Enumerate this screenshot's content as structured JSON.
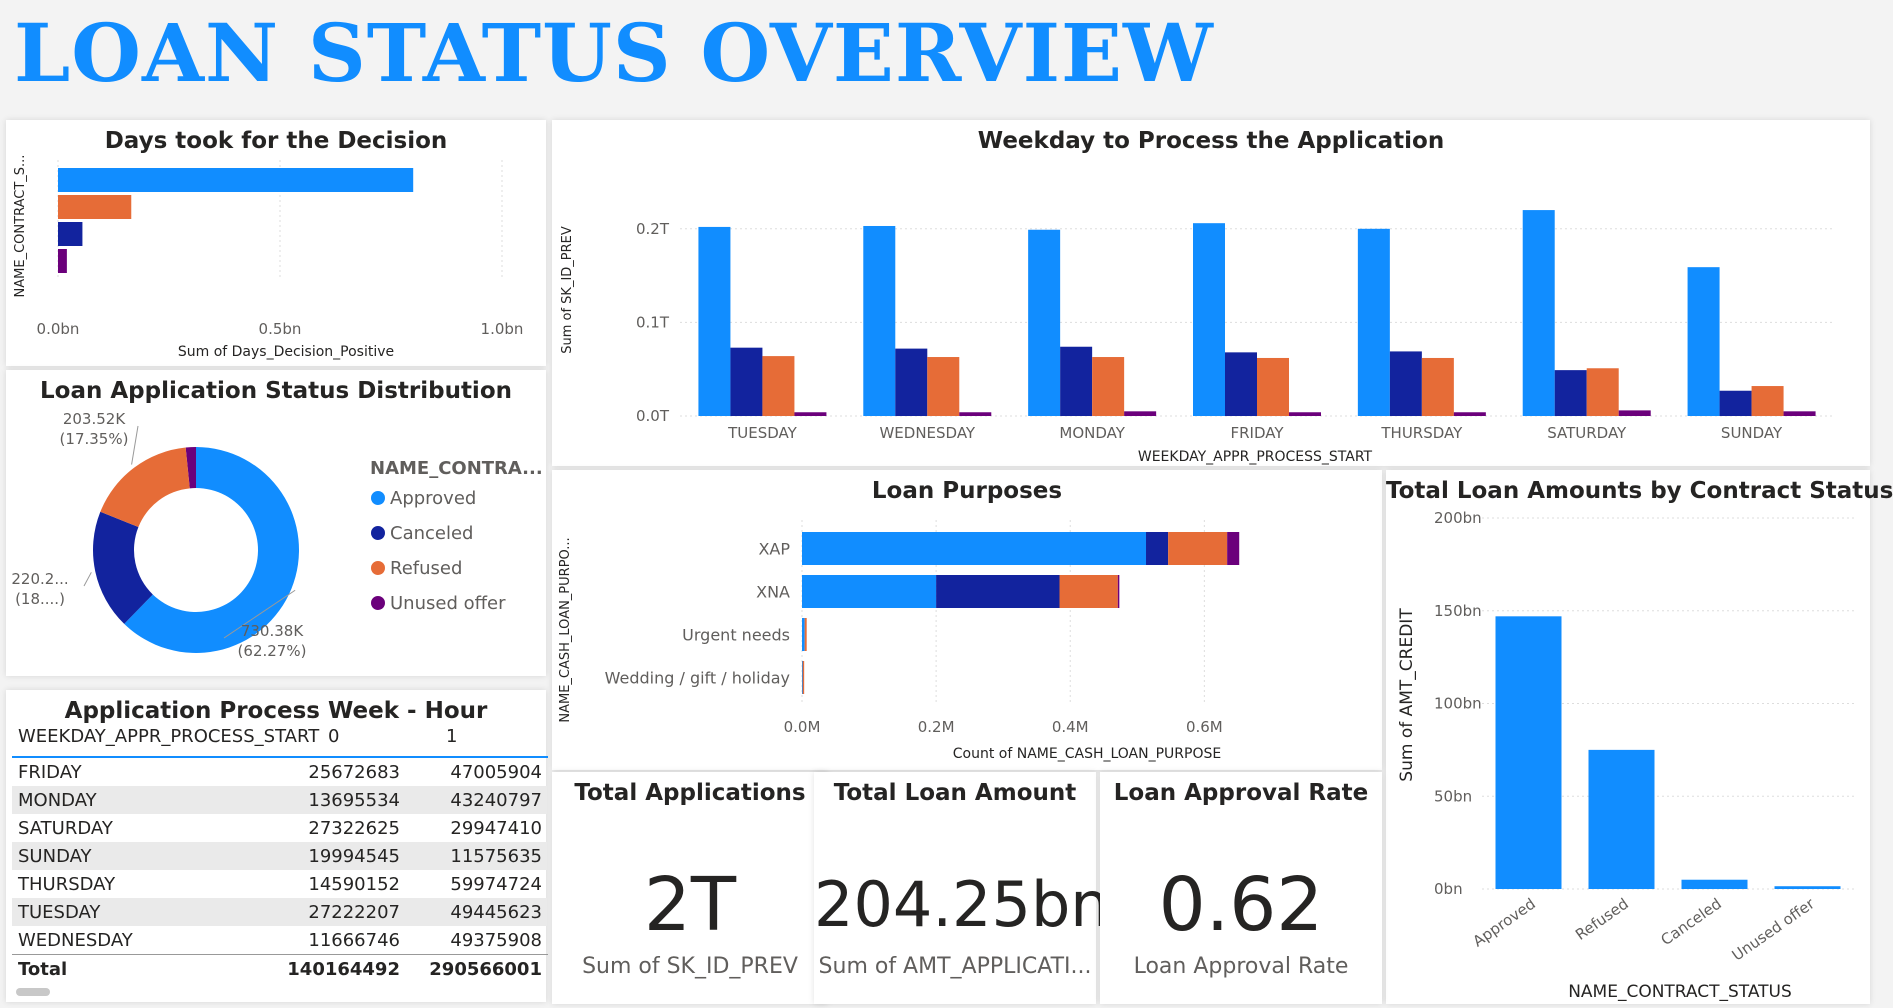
{
  "page_title": "LOAN STATUS OVERVIEW",
  "colors": {
    "approved": "#118DFF",
    "canceled": "#12239E",
    "refused": "#E66C37",
    "unused": "#6B007B"
  },
  "chart_data": [
    {
      "id": "days",
      "type": "bar",
      "orientation": "horizontal",
      "title": "Days took for the Decision",
      "xlabel": "Sum of Days_Decision_Positive",
      "ylabel": "NAME_CONTRACT_S...",
      "categories": [
        "Approved",
        "Refused",
        "Canceled",
        "Unused offer"
      ],
      "values": [
        0.8,
        0.165,
        0.055,
        0.02
      ],
      "unit": "bn",
      "xlim": [
        0,
        1.0
      ],
      "xticks": [
        "0.0bn",
        "0.5bn",
        "1.0bn"
      ]
    },
    {
      "id": "weekday",
      "type": "bar",
      "title": "Weekday to Process the Application",
      "xlabel": "WEEKDAY_APPR_PROCESS_START",
      "ylabel": "Sum of SK_ID_PREV",
      "categories": [
        "TUESDAY",
        "WEDNESDAY",
        "MONDAY",
        "FRIDAY",
        "THURSDAY",
        "SATURDAY",
        "SUNDAY"
      ],
      "ylim": [
        0,
        0.25
      ],
      "yticks": [
        "0.0T",
        "0.1T",
        "0.2T"
      ],
      "series": [
        {
          "key": "approved",
          "values": [
            0.202,
            0.203,
            0.199,
            0.206,
            0.2,
            0.22,
            0.159
          ]
        },
        {
          "key": "canceled",
          "values": [
            0.073,
            0.072,
            0.074,
            0.068,
            0.069,
            0.049,
            0.027
          ]
        },
        {
          "key": "refused",
          "values": [
            0.064,
            0.063,
            0.063,
            0.062,
            0.062,
            0.051,
            0.032
          ]
        },
        {
          "key": "unused",
          "values": [
            0.004,
            0.004,
            0.005,
            0.004,
            0.004,
            0.006,
            0.005
          ]
        }
      ]
    },
    {
      "id": "donut",
      "type": "pie",
      "title": "Loan Application Status Distribution",
      "legend_title": "NAME_CONTRA...",
      "slices": [
        {
          "key": "approved",
          "label": "Approved",
          "value": 730.38,
          "text": "730.38K",
          "pct": "(62.27%)"
        },
        {
          "key": "canceled",
          "label": "Canceled",
          "value": 220.2,
          "text": "220.2...",
          "pct": "(18....)"
        },
        {
          "key": "refused",
          "label": "Refused",
          "value": 203.52,
          "text": "203.52K",
          "pct": "(17.35%)"
        },
        {
          "key": "unused",
          "label": "Unused offer",
          "value": 18.8,
          "text": "",
          "pct": ""
        }
      ]
    },
    {
      "id": "purposes",
      "type": "bar",
      "orientation": "horizontal",
      "stacked": true,
      "title": "Loan Purposes",
      "xlabel": "Count of NAME_CASH_LOAN_PURPOSE",
      "ylabel": "NAME_CASH_LOAN_PURPO...",
      "categories": [
        "XAP",
        "XNA",
        "Urgent needs",
        "Wedding / gift / holiday"
      ],
      "xlim": [
        0,
        0.65
      ],
      "xticks": [
        "0.0M",
        "0.2M",
        "0.4M",
        "0.6M"
      ],
      "series": [
        {
          "key": "approved",
          "values": [
            0.513,
            0.2,
            0.004,
            0.001
          ]
        },
        {
          "key": "canceled",
          "values": [
            0.033,
            0.184,
            0.0,
            0.0
          ]
        },
        {
          "key": "refused",
          "values": [
            0.088,
            0.087,
            0.003,
            0.001
          ]
        },
        {
          "key": "unused",
          "values": [
            0.018,
            0.002,
            0.0,
            0.0
          ]
        }
      ]
    },
    {
      "id": "amounts",
      "type": "bar",
      "title": "Total Loan Amounts by Contract Status",
      "xlabel": "NAME_CONTRACT_STATUS",
      "ylabel": "Sum of AMT_CREDIT",
      "categories": [
        "Approved",
        "Refused",
        "Canceled",
        "Unused offer"
      ],
      "values": [
        147,
        75,
        5,
        1.5
      ],
      "unit": "bn",
      "ylim": [
        0,
        200
      ],
      "yticks": [
        "0bn",
        "50bn",
        "100bn",
        "150bn",
        "200bn"
      ]
    }
  ],
  "cards": [
    {
      "title": "Total Applications",
      "value": "2T",
      "label": "Sum of SK_ID_PREV"
    },
    {
      "title": "Total Loan Amount",
      "value": "204.25bn",
      "label": "Sum of AMT_APPLICATI..."
    },
    {
      "title": "Loan Approval Rate",
      "value": "0.62",
      "label": "Loan Approval Rate"
    }
  ],
  "matrix": {
    "title": "Application Process Week - Hour",
    "header": [
      "WEEKDAY_APPR_PROCESS_START",
      "0",
      "1"
    ],
    "rows": [
      [
        "FRIDAY",
        "25672683",
        "47005904"
      ],
      [
        "MONDAY",
        "13695534",
        "43240797"
      ],
      [
        "SATURDAY",
        "27322625",
        "29947410"
      ],
      [
        "SUNDAY",
        "19994545",
        "11575635"
      ],
      [
        "THURSDAY",
        "14590152",
        "59974724"
      ],
      [
        "TUESDAY",
        "27222207",
        "49445623"
      ],
      [
        "WEDNESDAY",
        "11666746",
        "49375908"
      ]
    ],
    "total": [
      "Total",
      "140164492",
      "290566001"
    ]
  }
}
